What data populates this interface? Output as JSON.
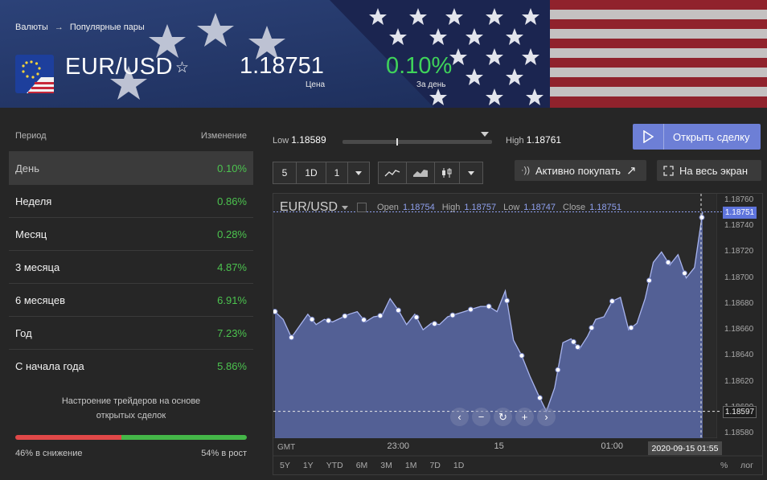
{
  "breadcrumb": {
    "root": "Валюты",
    "arrow": "→",
    "current": "Популярные пары"
  },
  "instrument": {
    "title": "EUR/USD",
    "price": "1.18751",
    "price_label": "Цена",
    "change": "0.10%",
    "change_label": "За день",
    "favorite_icon": "star-outline-icon"
  },
  "periods": {
    "header_period": "Период",
    "header_change": "Изменение",
    "rows": [
      {
        "label": "День",
        "value": "0.10%"
      },
      {
        "label": "Неделя",
        "value": "0.86%"
      },
      {
        "label": "Месяц",
        "value": "0.28%"
      },
      {
        "label": "3 месяца",
        "value": "4.87%"
      },
      {
        "label": "6 месяцев",
        "value": "6.91%"
      },
      {
        "label": "Год",
        "value": "7.23%"
      },
      {
        "label": "С начала года",
        "value": "5.86%"
      }
    ],
    "active_index": 0
  },
  "sentiment": {
    "title_line1": "Настроение трейдеров на основе",
    "title_line2": "открытых сделок",
    "down_label": "46% в снижение",
    "up_label": "54% в рост",
    "down_fraction": 0.46,
    "colors": {
      "down": "#e04848",
      "up": "#44b648"
    }
  },
  "range": {
    "low_label": "Low",
    "low": "1.18589",
    "high_label": "High",
    "high": "1.18761",
    "current_fraction": 0.36
  },
  "actions": {
    "open_trade": "Открыть сделку",
    "active_buying": "Активно покупать",
    "fullscreen": "На весь экран"
  },
  "toolbar": {
    "interval_a": "5",
    "interval_b": "1D",
    "interval_c": "1"
  },
  "chart_legend": {
    "symbol": "EUR/USD",
    "open_label": "Open",
    "open": "1.18754",
    "high_label": "High",
    "high": "1.18757",
    "low_label": "Low",
    "low": "1.18747",
    "close_label": "Close",
    "close": "1.18751"
  },
  "chart_footer": {
    "gmt": "GMT",
    "crosshair_time": "2020-09-15 01:55",
    "ranges": [
      "5Y",
      "1Y",
      "YTD",
      "6M",
      "3M",
      "1M",
      "7D",
      "1D"
    ],
    "pct": "%",
    "log": "лог"
  },
  "chart_data": {
    "type": "area",
    "series": [
      {
        "name": "EUR/USD",
        "x": [
          0,
          10,
          20,
          30,
          40,
          50,
          60,
          70,
          80,
          90,
          100,
          110,
          120,
          130,
          140,
          150,
          160,
          170,
          180,
          190,
          200,
          210,
          220,
          230,
          240,
          250,
          260,
          270,
          280,
          290,
          300,
          310,
          320,
          330,
          340,
          350,
          360,
          370,
          380,
          390,
          400,
          410,
          420,
          430,
          440,
          450,
          460,
          470,
          480,
          490,
          500,
          510,
          520
        ],
        "values": [
          1.18674,
          1.18668,
          1.18654,
          1.18663,
          1.18672,
          1.18664,
          1.18668,
          1.18666,
          1.18669,
          1.18672,
          1.18674,
          1.18666,
          1.1867,
          1.18671,
          1.18684,
          1.18675,
          1.18664,
          1.18672,
          1.1866,
          1.18665,
          1.18664,
          1.1867,
          1.18672,
          1.18674,
          1.18676,
          1.18678,
          1.18678,
          1.18674,
          1.1869,
          1.18652,
          1.1864,
          1.18624,
          1.1861,
          1.18597,
          1.18615,
          1.1865,
          1.18653,
          1.18645,
          1.18655,
          1.18668,
          1.1867,
          1.18682,
          1.18685,
          1.1866,
          1.18665,
          1.18684,
          1.18712,
          1.1872,
          1.1871,
          1.18718,
          1.187,
          1.18708,
          1.18751
        ]
      }
    ],
    "markers_x": [
      0,
      20,
      45,
      65,
      85,
      108,
      128,
      150,
      172,
      194,
      216,
      238,
      260,
      282,
      300,
      322,
      344,
      363,
      368,
      385,
      410,
      433,
      455,
      478,
      498,
      519
    ],
    "x_ticks": [
      {
        "x": 150,
        "label": "23:00"
      },
      {
        "x": 280,
        "label": "15"
      },
      {
        "x": 410,
        "label": "01:00"
      }
    ],
    "y_ticks": [
      "1.18760",
      "1.18740",
      "1.18720",
      "1.18700",
      "1.18680",
      "1.18660",
      "1.18640",
      "1.18620",
      "1.18600",
      "1.18580"
    ],
    "ylim": [
      1.1858,
      1.1876
    ],
    "crosshair_price": "1.18597",
    "last_price": "1.18751",
    "colors": {
      "fill": "#5b6aa8",
      "line": "#a8b4ee",
      "marker": "#ffffff"
    }
  }
}
